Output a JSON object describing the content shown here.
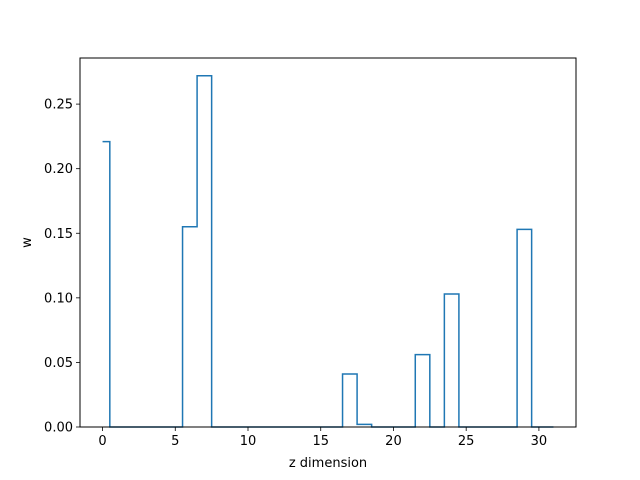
{
  "chart_data": {
    "type": "line",
    "drawstyle": "steps-mid",
    "title": "",
    "xlabel": "z dimension",
    "ylabel": "w",
    "xlim": [
      -1.55,
      32.55
    ],
    "ylim": [
      0,
      0.2857
    ],
    "xticks": [
      0,
      5,
      10,
      15,
      20,
      25,
      30
    ],
    "xtick_labels": [
      "0",
      "5",
      "10",
      "15",
      "20",
      "25",
      "30"
    ],
    "yticks": [
      0.0,
      0.05,
      0.1,
      0.15,
      0.2,
      0.25
    ],
    "ytick_labels": [
      "0.00",
      "0.05",
      "0.10",
      "0.15",
      "0.20",
      "0.25"
    ],
    "grid": false,
    "line_color": "#1f77b4",
    "x": [
      0,
      1,
      2,
      3,
      4,
      5,
      6,
      7,
      8,
      9,
      10,
      11,
      12,
      13,
      14,
      15,
      16,
      17,
      18,
      19,
      20,
      21,
      22,
      23,
      24,
      25,
      26,
      27,
      28,
      29,
      30,
      31
    ],
    "y": [
      0.221,
      0.0,
      0.0,
      0.0,
      0.0,
      0.0,
      0.155,
      0.272,
      0.0,
      0.0,
      0.0,
      0.0,
      0.0,
      0.0,
      0.0,
      0.0,
      0.0,
      0.041,
      0.002,
      0.0,
      0.0,
      0.0,
      0.056,
      0.0,
      0.103,
      0.0,
      0.0,
      0.0,
      0.0,
      0.153,
      0.0,
      0.0
    ]
  }
}
